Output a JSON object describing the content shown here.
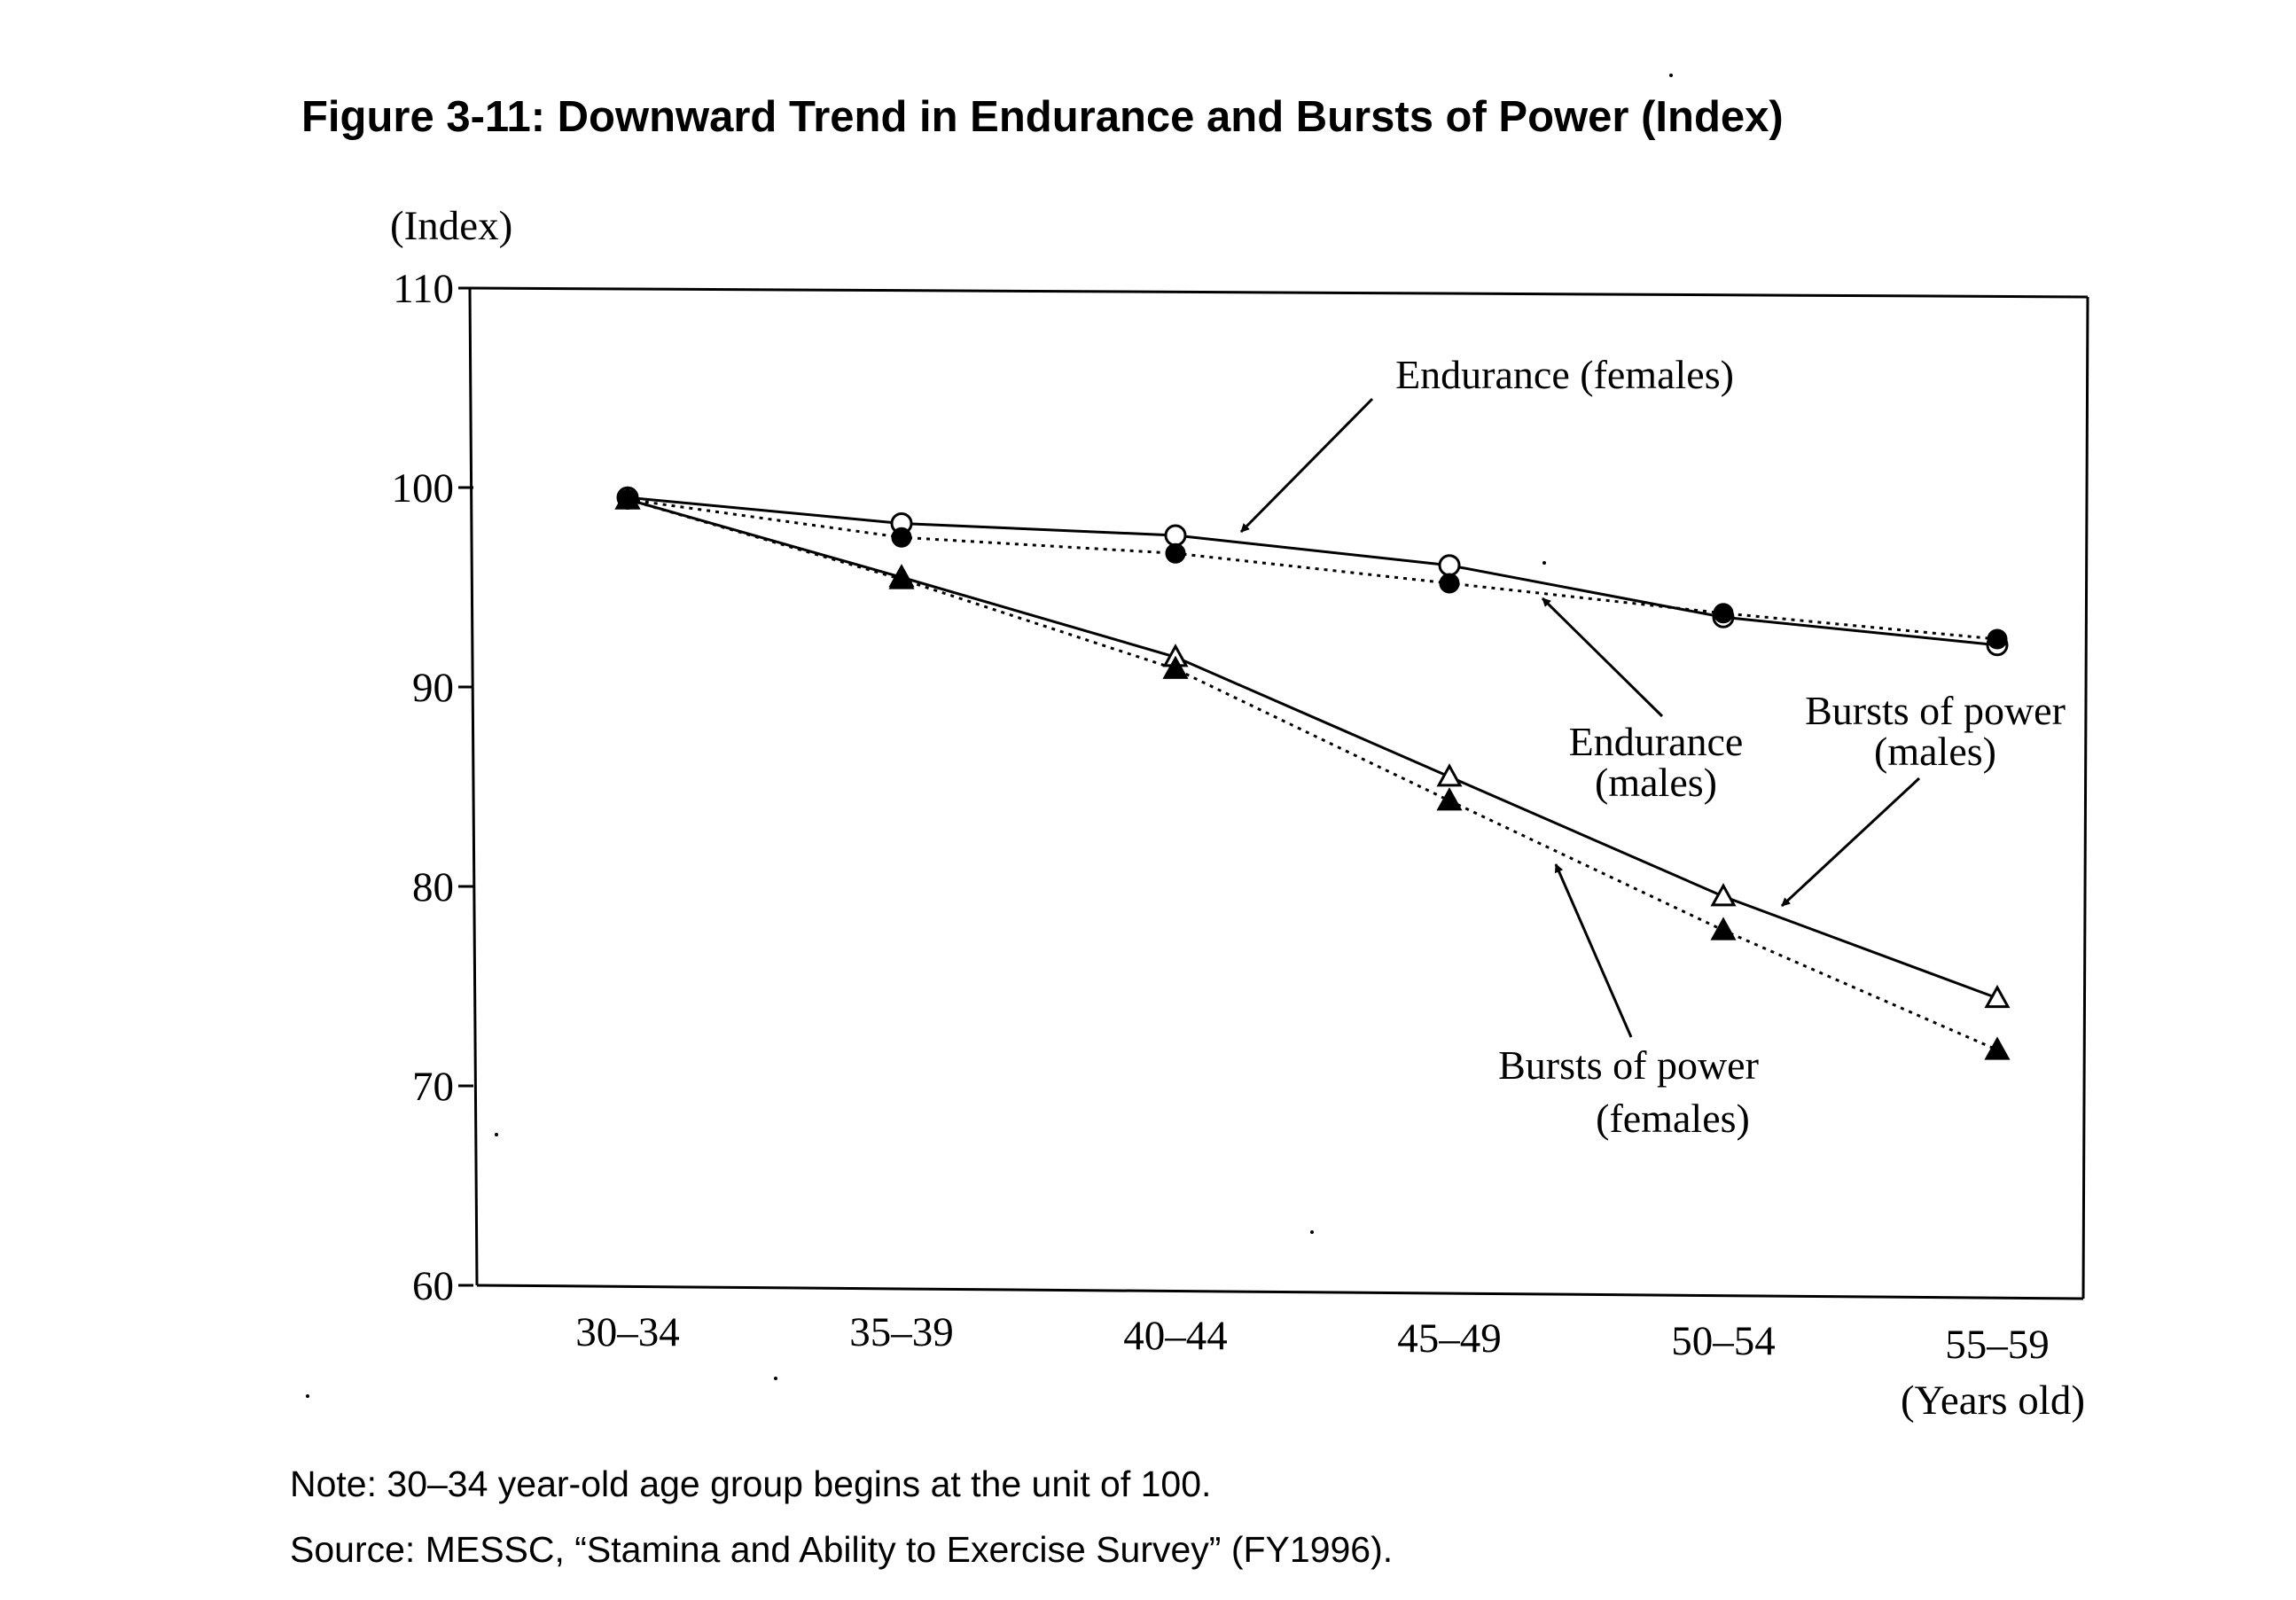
{
  "chart_data": {
    "type": "line",
    "title": "Figure 3-11: Downward Trend in Endurance and Bursts of Power (Index)",
    "ylabel": "(Index)",
    "xlabel": "(Years old)",
    "categories": [
      "30–34",
      "35–39",
      "40–44",
      "45–49",
      "50–54",
      "55–59"
    ],
    "ylim": [
      60,
      110
    ],
    "yticks": [
      60,
      70,
      80,
      90,
      100,
      110
    ],
    "grid": false,
    "legend": "none",
    "series": [
      {
        "name": "Endurance (females)",
        "values": [
          99.5,
          98.2,
          97.6,
          96.1,
          93.5,
          92.1
        ],
        "line": "solid",
        "marker": "open-circle"
      },
      {
        "name": "Endurance (males)",
        "values": [
          99.4,
          97.5,
          96.7,
          95.2,
          93.7,
          92.4
        ],
        "line": "dotted",
        "marker": "filled-circle"
      },
      {
        "name": "Bursts of power (males)",
        "values": [
          99.4,
          95.5,
          91.5,
          85.5,
          79.5,
          74.4
        ],
        "line": "solid",
        "marker": "open-triangle"
      },
      {
        "name": "Bursts of power (females)",
        "values": [
          99.4,
          95.4,
          90.9,
          84.3,
          77.8,
          71.8
        ],
        "line": "dotted",
        "marker": "filled-triangle"
      }
    ],
    "annotations": [
      {
        "lines": [
          "Endurance (females)"
        ]
      },
      {
        "lines": [
          "Endurance",
          "(males)"
        ]
      },
      {
        "lines": [
          "Bursts of power",
          "(males)"
        ]
      },
      {
        "lines": [
          "Bursts of power",
          "(females)"
        ]
      }
    ],
    "notes": [
      "Note: 30–34 year-old age group begins at the unit of 100.",
      "Source: MESSC, “Stamina and Ability to Exercise Survey” (FY1996)."
    ]
  }
}
